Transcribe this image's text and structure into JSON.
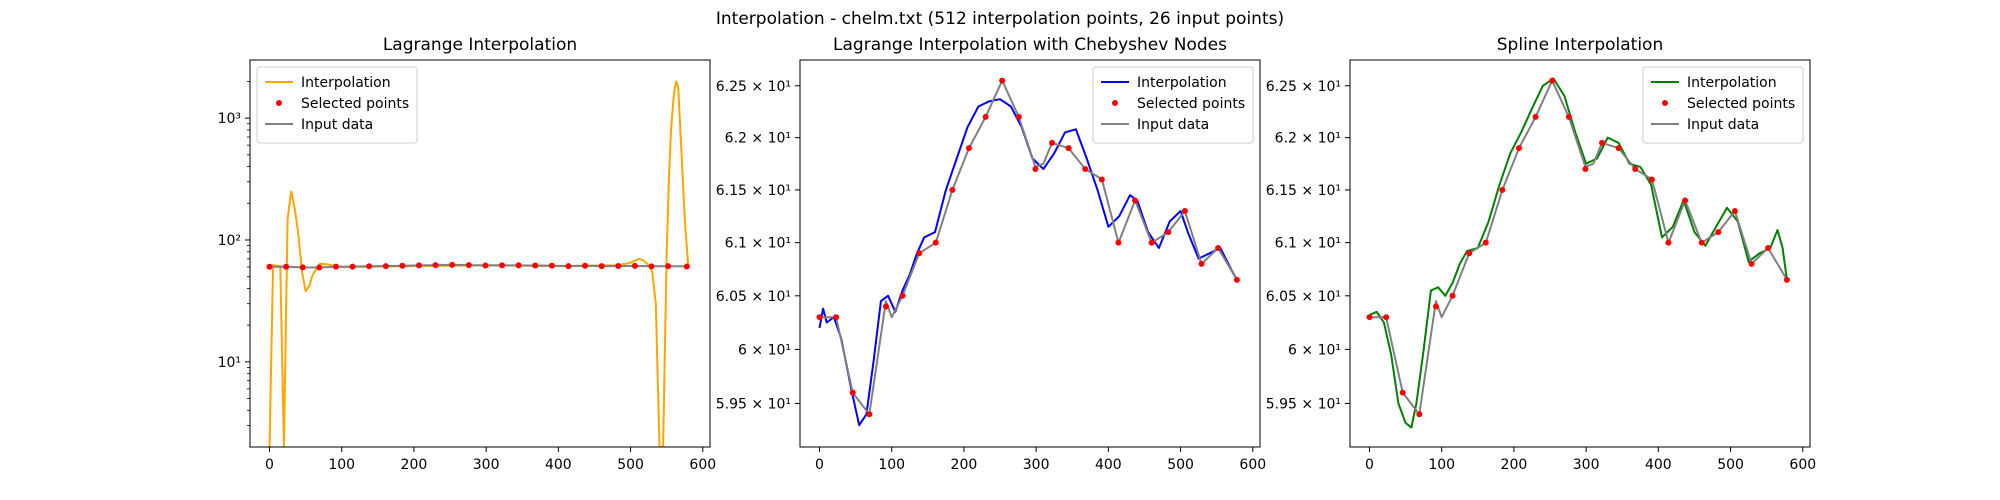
{
  "suptitle": "Interpolation - chelm.txt (512 interpolation points, 26 input points)",
  "colors": {
    "lagrange": "#ffa500",
    "chebyshev": "#0000ff",
    "spline": "#008000",
    "input": "#808080",
    "points": "#ff0000"
  },
  "chart_data": [
    {
      "type": "line",
      "title": "Lagrange Interpolation",
      "yscale": "log",
      "xlim": [
        -27,
        610
      ],
      "ylim": [
        2,
        3000
      ],
      "xticks": [
        0,
        100,
        200,
        300,
        400,
        500,
        600
      ],
      "xtick_labels": [
        "0",
        "100",
        "200",
        "300",
        "400",
        "500",
        "600"
      ],
      "yticks": [
        10,
        100,
        1000
      ],
      "ytick_labels": [
        "10¹",
        "10²",
        "10³"
      ],
      "legend": {
        "position": "upper-left",
        "entries": [
          "Interpolation",
          "Selected points",
          "Input data"
        ]
      },
      "series": [
        {
          "name": "Interpolation",
          "color": "#ffa500",
          "x": [
            0,
            5,
            15,
            20,
            25,
            30,
            35,
            40,
            45,
            50,
            55,
            60,
            70,
            80,
            90,
            100,
            200,
            300,
            400,
            480,
            495,
            505,
            512,
            518,
            525,
            530,
            535,
            540,
            545,
            550,
            553,
            556,
            560,
            563,
            566,
            570,
            575,
            580
          ],
          "y": [
            2,
            62,
            61,
            2,
            150,
            250,
            180,
            110,
            55,
            38,
            42,
            52,
            64,
            63,
            61,
            60,
            61,
            62,
            61,
            62,
            64,
            67,
            70,
            68,
            62,
            55,
            30,
            2,
            2,
            80,
            300,
            800,
            1600,
            2000,
            1800,
            600,
            150,
            60
          ]
        },
        {
          "name": "Input data",
          "color": "#808080",
          "x": [
            0,
            23,
            46,
            69,
            92,
            115,
            138,
            161,
            184,
            207,
            230,
            253,
            276,
            299,
            322,
            345,
            368,
            391,
            414,
            437,
            460,
            483,
            506,
            529,
            552,
            578
          ],
          "y": [
            60.3,
            60.3,
            59.6,
            59.4,
            60.4,
            60.5,
            60.9,
            61.0,
            61.5,
            61.9,
            62.2,
            62.55,
            62.2,
            61.7,
            61.95,
            61.9,
            61.7,
            61.6,
            61.0,
            61.4,
            61.0,
            61.1,
            61.3,
            60.8,
            60.95,
            60.65
          ]
        }
      ],
      "points": {
        "name": "Selected points",
        "color": "#ff0000",
        "x": [
          0,
          23,
          46,
          69,
          92,
          115,
          138,
          161,
          184,
          207,
          230,
          253,
          276,
          299,
          322,
          345,
          368,
          391,
          414,
          437,
          460,
          483,
          506,
          529,
          552,
          578
        ],
        "y": [
          60.3,
          60.3,
          59.6,
          59.4,
          60.4,
          60.5,
          60.9,
          61.0,
          61.5,
          61.9,
          62.2,
          62.55,
          62.2,
          61.7,
          61.95,
          61.9,
          61.7,
          61.6,
          61.0,
          61.4,
          61.0,
          61.1,
          61.3,
          60.8,
          60.95,
          60.65
        ]
      }
    },
    {
      "type": "line",
      "title": "Lagrange Interpolation with Chebyshev Nodes",
      "yscale": "log",
      "xlim": [
        -27,
        610
      ],
      "ylim": [
        59.1,
        62.75
      ],
      "xticks": [
        0,
        100,
        200,
        300,
        400,
        500,
        600
      ],
      "xtick_labels": [
        "0",
        "100",
        "200",
        "300",
        "400",
        "500",
        "600"
      ],
      "yticks": [
        59.5,
        60,
        60.5,
        61,
        61.5,
        62,
        62.5
      ],
      "ytick_labels": [
        "5.95 × 10¹",
        "6 × 10¹",
        "6.05 × 10¹",
        "6.1 × 10¹",
        "6.15 × 10¹",
        "6.2 × 10¹",
        "6.25 × 10¹"
      ],
      "legend": {
        "position": "upper-right",
        "entries": [
          "Interpolation",
          "Selected points",
          "Input data"
        ]
      },
      "series": [
        {
          "name": "Interpolation",
          "color": "#0000ff",
          "x": [
            0,
            5,
            10,
            20,
            30,
            45,
            55,
            65,
            75,
            85,
            95,
            105,
            115,
            125,
            135,
            145,
            160,
            175,
            190,
            205,
            220,
            235,
            250,
            265,
            280,
            295,
            310,
            325,
            340,
            355,
            370,
            385,
            400,
            415,
            430,
            440,
            455,
            470,
            485,
            500,
            510,
            525,
            540,
            555,
            570,
            578
          ],
          "y": [
            60.2,
            60.38,
            60.25,
            60.3,
            60.1,
            59.6,
            59.3,
            59.4,
            59.9,
            60.45,
            60.5,
            60.35,
            60.55,
            60.7,
            60.9,
            61.05,
            61.1,
            61.5,
            61.8,
            62.1,
            62.3,
            62.35,
            62.37,
            62.3,
            62.1,
            61.8,
            61.7,
            61.85,
            62.05,
            62.08,
            61.8,
            61.5,
            61.15,
            61.25,
            61.45,
            61.4,
            61.1,
            60.95,
            61.2,
            61.3,
            61.1,
            60.85,
            60.9,
            60.95,
            60.75,
            60.65
          ]
        },
        {
          "name": "Input data",
          "color": "#808080",
          "x": [
            0,
            23,
            46,
            69,
            92,
            100,
            115,
            138,
            161,
            184,
            207,
            230,
            253,
            276,
            299,
            310,
            322,
            345,
            368,
            391,
            414,
            437,
            460,
            483,
            506,
            529,
            552,
            578
          ],
          "y": [
            60.3,
            60.3,
            59.6,
            59.4,
            60.45,
            60.3,
            60.5,
            60.9,
            61.0,
            61.5,
            61.9,
            62.2,
            62.55,
            62.2,
            61.72,
            61.75,
            61.95,
            61.9,
            61.7,
            61.6,
            61.0,
            61.4,
            61.0,
            61.1,
            61.3,
            60.8,
            60.95,
            60.65
          ]
        }
      ],
      "points": {
        "name": "Selected points",
        "color": "#ff0000",
        "x": [
          0,
          23,
          46,
          69,
          92,
          115,
          138,
          161,
          184,
          207,
          230,
          253,
          276,
          299,
          322,
          345,
          368,
          391,
          414,
          437,
          460,
          483,
          506,
          529,
          552,
          578
        ],
        "y": [
          60.3,
          60.3,
          59.6,
          59.4,
          60.4,
          60.5,
          60.9,
          61.0,
          61.5,
          61.9,
          62.2,
          62.55,
          62.2,
          61.7,
          61.95,
          61.9,
          61.7,
          61.6,
          61.0,
          61.4,
          61.0,
          61.1,
          61.3,
          60.8,
          60.95,
          60.65
        ]
      }
    },
    {
      "type": "line",
      "title": "Spline Interpolation",
      "yscale": "log",
      "xlim": [
        -27,
        610
      ],
      "ylim": [
        59.1,
        62.75
      ],
      "xticks": [
        0,
        100,
        200,
        300,
        400,
        500,
        600
      ],
      "xtick_labels": [
        "0",
        "100",
        "200",
        "300",
        "400",
        "500",
        "600"
      ],
      "yticks": [
        59.5,
        60,
        60.5,
        61,
        61.5,
        62,
        62.5
      ],
      "ytick_labels": [
        "5.95 × 10¹",
        "6 × 10¹",
        "6.05 × 10¹",
        "6.1 × 10¹",
        "6.15 × 10¹",
        "6.2 × 10¹",
        "6.25 × 10¹"
      ],
      "legend": {
        "position": "upper-right",
        "entries": [
          "Interpolation",
          "Selected points",
          "Input data"
        ]
      },
      "series": [
        {
          "name": "Interpolation",
          "color": "#008000",
          "x": [
            0,
            10,
            20,
            30,
            40,
            50,
            58,
            65,
            75,
            85,
            95,
            105,
            115,
            125,
            135,
            150,
            165,
            180,
            195,
            210,
            225,
            240,
            255,
            270,
            285,
            300,
            315,
            330,
            345,
            360,
            375,
            390,
            405,
            420,
            435,
            450,
            465,
            480,
            495,
            510,
            525,
            540,
            555,
            565,
            572,
            578
          ],
          "y": [
            60.32,
            60.35,
            60.25,
            59.95,
            59.5,
            59.32,
            59.28,
            59.5,
            60.0,
            60.55,
            60.58,
            60.5,
            60.62,
            60.8,
            60.92,
            60.95,
            61.2,
            61.55,
            61.85,
            62.05,
            62.28,
            62.5,
            62.57,
            62.4,
            62.05,
            61.75,
            61.8,
            62.0,
            61.95,
            61.75,
            61.72,
            61.55,
            61.05,
            61.15,
            61.4,
            61.1,
            60.97,
            61.15,
            61.33,
            61.2,
            60.82,
            60.9,
            60.95,
            61.12,
            60.95,
            60.65
          ]
        },
        {
          "name": "Input data",
          "color": "#808080",
          "x": [
            0,
            23,
            46,
            69,
            92,
            100,
            115,
            138,
            161,
            184,
            207,
            230,
            253,
            276,
            299,
            310,
            322,
            345,
            368,
            391,
            414,
            437,
            460,
            483,
            506,
            529,
            552,
            578
          ],
          "y": [
            60.3,
            60.3,
            59.6,
            59.4,
            60.45,
            60.3,
            60.5,
            60.9,
            61.0,
            61.5,
            61.9,
            62.2,
            62.55,
            62.2,
            61.72,
            61.75,
            61.95,
            61.9,
            61.7,
            61.6,
            61.0,
            61.4,
            61.0,
            61.1,
            61.3,
            60.8,
            60.95,
            60.65
          ]
        }
      ],
      "points": {
        "name": "Selected points",
        "color": "#ff0000",
        "x": [
          0,
          23,
          46,
          69,
          92,
          115,
          138,
          161,
          184,
          207,
          230,
          253,
          276,
          299,
          322,
          345,
          368,
          391,
          414,
          437,
          460,
          483,
          506,
          529,
          552,
          578
        ],
        "y": [
          60.3,
          60.3,
          59.6,
          59.4,
          60.4,
          60.5,
          60.9,
          61.0,
          61.5,
          61.9,
          62.2,
          62.55,
          62.2,
          61.7,
          61.95,
          61.9,
          61.7,
          61.6,
          61.0,
          61.4,
          61.0,
          61.1,
          61.3,
          60.8,
          60.95,
          60.65
        ]
      }
    }
  ]
}
